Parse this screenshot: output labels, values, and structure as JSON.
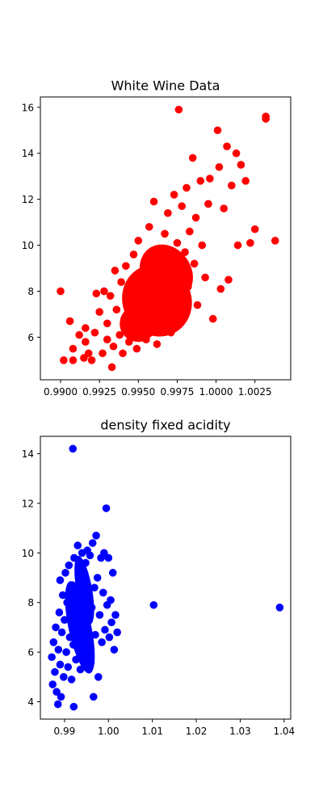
{
  "chart_data": [
    {
      "type": "scatter",
      "title": "White Wine Data",
      "xlabel": "",
      "ylabel": "",
      "xlim": [
        0.9887,
        1.0048
      ],
      "ylim": [
        4.15,
        16.45
      ],
      "xticks": [
        0.99,
        0.9925,
        0.995,
        0.9975,
        1.0,
        1.0025
      ],
      "xtick_labels": [
        "0.9900",
        "0.9925",
        "0.9950",
        "0.9975",
        "1.0000",
        "1.0025"
      ],
      "yticks": [
        6,
        8,
        10,
        12,
        14,
        16
      ],
      "ytick_labels": [
        "6",
        "8",
        "10",
        "12",
        "14",
        "16"
      ],
      "grid": false,
      "color": "#ff0000",
      "series": [
        {
          "values": [
            {
              "x": 0.99,
              "y": 8.0
            },
            {
              "x": 0.9902,
              "y": 5.0
            },
            {
              "x": 0.9906,
              "y": 6.7
            },
            {
              "x": 0.9908,
              "y": 5.0
            },
            {
              "x": 0.9908,
              "y": 5.5
            },
            {
              "x": 0.9912,
              "y": 6.1
            },
            {
              "x": 0.9915,
              "y": 5.1
            },
            {
              "x": 0.9916,
              "y": 5.8
            },
            {
              "x": 0.9916,
              "y": 6.4
            },
            {
              "x": 0.9918,
              "y": 5.3
            },
            {
              "x": 0.992,
              "y": 5.0
            },
            {
              "x": 0.9922,
              "y": 6.2
            },
            {
              "x": 0.9923,
              "y": 7.9
            },
            {
              "x": 0.9925,
              "y": 7.1
            },
            {
              "x": 0.9927,
              "y": 5.3
            },
            {
              "x": 0.9928,
              "y": 8.0
            },
            {
              "x": 0.993,
              "y": 6.6
            },
            {
              "x": 0.993,
              "y": 5.9
            },
            {
              "x": 0.9932,
              "y": 7.8
            },
            {
              "x": 0.9933,
              "y": 4.7
            },
            {
              "x": 0.9934,
              "y": 5.6
            },
            {
              "x": 0.9935,
              "y": 8.9
            },
            {
              "x": 0.9936,
              "y": 7.2
            },
            {
              "x": 0.9938,
              "y": 6.1
            },
            {
              "x": 0.9939,
              "y": 8.4
            },
            {
              "x": 0.994,
              "y": 5.3
            },
            {
              "x": 0.9941,
              "y": 6.8
            },
            {
              "x": 0.9942,
              "y": 9.1
            },
            {
              "x": 0.9943,
              "y": 7.4
            },
            {
              "x": 0.9944,
              "y": 5.8
            },
            {
              "x": 0.9945,
              "y": 8.1
            },
            {
              "x": 0.9946,
              "y": 6.3
            },
            {
              "x": 0.9947,
              "y": 9.6
            },
            {
              "x": 0.9948,
              "y": 7.0
            },
            {
              "x": 0.9949,
              "y": 5.5
            },
            {
              "x": 0.995,
              "y": 10.2
            },
            {
              "x": 0.9951,
              "y": 8.6
            },
            {
              "x": 0.9952,
              "y": 6.7
            },
            {
              "x": 0.9953,
              "y": 7.7
            },
            {
              "x": 0.9954,
              "y": 9.3
            },
            {
              "x": 0.9955,
              "y": 5.9
            },
            {
              "x": 0.9956,
              "y": 8.2
            },
            {
              "x": 0.9956,
              "y": 6.9
            },
            {
              "x": 0.9957,
              "y": 10.8
            },
            {
              "x": 0.9958,
              "y": 7.3
            },
            {
              "x": 0.9959,
              "y": 9.0
            },
            {
              "x": 0.996,
              "y": 6.4
            },
            {
              "x": 0.996,
              "y": 11.9
            },
            {
              "x": 0.9961,
              "y": 8.0
            },
            {
              "x": 0.9962,
              "y": 5.7
            },
            {
              "x": 0.9963,
              "y": 9.8
            },
            {
              "x": 0.9964,
              "y": 7.6
            },
            {
              "x": 0.9965,
              "y": 6.5
            },
            {
              "x": 0.9966,
              "y": 8.8
            },
            {
              "x": 0.9967,
              "y": 10.5
            },
            {
              "x": 0.9968,
              "y": 7.1
            },
            {
              "x": 0.9969,
              "y": 11.4
            },
            {
              "x": 0.997,
              "y": 8.4
            },
            {
              "x": 0.9971,
              "y": 6.2
            },
            {
              "x": 0.9972,
              "y": 9.4
            },
            {
              "x": 0.9973,
              "y": 12.2
            },
            {
              "x": 0.9974,
              "y": 7.8
            },
            {
              "x": 0.9975,
              "y": 10.1
            },
            {
              "x": 0.9976,
              "y": 15.9
            },
            {
              "x": 0.9977,
              "y": 8.9
            },
            {
              "x": 0.9978,
              "y": 11.7
            },
            {
              "x": 0.9979,
              "y": 6.9
            },
            {
              "x": 0.998,
              "y": 9.7
            },
            {
              "x": 0.9981,
              "y": 12.5
            },
            {
              "x": 0.9982,
              "y": 8.2
            },
            {
              "x": 0.9983,
              "y": 10.6
            },
            {
              "x": 0.9985,
              "y": 13.8
            },
            {
              "x": 0.9986,
              "y": 9.2
            },
            {
              "x": 0.9987,
              "y": 11.2
            },
            {
              "x": 0.9988,
              "y": 7.4
            },
            {
              "x": 0.999,
              "y": 12.8
            },
            {
              "x": 0.9991,
              "y": 10.0
            },
            {
              "x": 0.9993,
              "y": 8.6
            },
            {
              "x": 0.9995,
              "y": 11.8
            },
            {
              "x": 0.9996,
              "y": 12.9
            },
            {
              "x": 0.9998,
              "y": 6.8
            },
            {
              "x": 1.0001,
              "y": 15.0
            },
            {
              "x": 1.0002,
              "y": 13.4
            },
            {
              "x": 1.0003,
              "y": 8.1
            },
            {
              "x": 1.0005,
              "y": 11.6
            },
            {
              "x": 1.0007,
              "y": 14.3
            },
            {
              "x": 1.0008,
              "y": 8.5
            },
            {
              "x": 1.001,
              "y": 12.6
            },
            {
              "x": 1.0013,
              "y": 14.0
            },
            {
              "x": 1.0014,
              "y": 10.0
            },
            {
              "x": 1.0016,
              "y": 13.5
            },
            {
              "x": 1.0019,
              "y": 12.8
            },
            {
              "x": 1.0022,
              "y": 10.1
            },
            {
              "x": 1.0025,
              "y": 10.7
            },
            {
              "x": 1.0032,
              "y": 15.6
            },
            {
              "x": 1.0032,
              "y": 15.5
            },
            {
              "x": 1.0038,
              "y": 10.2
            }
          ]
        }
      ]
    },
    {
      "type": "scatter",
      "title": "density fixed acidity",
      "xlabel": "",
      "ylabel": "",
      "xlim": [
        0.9845,
        1.0415
      ],
      "ylim": [
        3.3,
        14.7
      ],
      "xticks": [
        0.99,
        1.0,
        1.01,
        1.02,
        1.03,
        1.04
      ],
      "xtick_labels": [
        "0.99",
        "1.00",
        "1.01",
        "1.02",
        "1.03",
        "1.04"
      ],
      "yticks": [
        4,
        6,
        8,
        10,
        12,
        14
      ],
      "ytick_labels": [
        "4",
        "6",
        "8",
        "10",
        "12",
        "14"
      ],
      "grid": false,
      "color": "#0000ff",
      "series": [
        {
          "values": [
            {
              "x": 0.9871,
              "y": 5.8
            },
            {
              "x": 0.9873,
              "y": 4.7
            },
            {
              "x": 0.9875,
              "y": 6.4
            },
            {
              "x": 0.9878,
              "y": 5.2
            },
            {
              "x": 0.988,
              "y": 7.0
            },
            {
              "x": 0.9882,
              "y": 4.4
            },
            {
              "x": 0.9885,
              "y": 3.9
            },
            {
              "x": 0.9886,
              "y": 6.1
            },
            {
              "x": 0.9888,
              "y": 7.6
            },
            {
              "x": 0.989,
              "y": 5.5
            },
            {
              "x": 0.989,
              "y": 8.9
            },
            {
              "x": 0.9892,
              "y": 4.2
            },
            {
              "x": 0.9894,
              "y": 6.8
            },
            {
              "x": 0.9896,
              "y": 8.3
            },
            {
              "x": 0.9898,
              "y": 5.0
            },
            {
              "x": 0.99,
              "y": 7.3
            },
            {
              "x": 0.9902,
              "y": 9.2
            },
            {
              "x": 0.9904,
              "y": 6.0
            },
            {
              "x": 0.9906,
              "y": 8.0
            },
            {
              "x": 0.9908,
              "y": 5.4
            },
            {
              "x": 0.991,
              "y": 9.5
            },
            {
              "x": 0.9912,
              "y": 6.6
            },
            {
              "x": 0.9914,
              "y": 7.9
            },
            {
              "x": 0.9916,
              "y": 4.9
            },
            {
              "x": 0.9918,
              "y": 8.7
            },
            {
              "x": 0.9919,
              "y": 14.2
            },
            {
              "x": 0.992,
              "y": 6.3
            },
            {
              "x": 0.9921,
              "y": 3.8
            },
            {
              "x": 0.9922,
              "y": 9.8
            },
            {
              "x": 0.9924,
              "y": 7.1
            },
            {
              "x": 0.9926,
              "y": 5.7
            },
            {
              "x": 0.9928,
              "y": 8.5
            },
            {
              "x": 0.993,
              "y": 10.3
            },
            {
              "x": 0.9932,
              "y": 6.9
            },
            {
              "x": 0.9934,
              "y": 9.1
            },
            {
              "x": 0.9936,
              "y": 5.3
            },
            {
              "x": 0.9938,
              "y": 7.7
            },
            {
              "x": 0.994,
              "y": 10.0
            },
            {
              "x": 0.9942,
              "y": 6.2
            },
            {
              "x": 0.9944,
              "y": 8.8
            },
            {
              "x": 0.9946,
              "y": 5.9
            },
            {
              "x": 0.9948,
              "y": 9.6
            },
            {
              "x": 0.995,
              "y": 7.4
            },
            {
              "x": 0.9952,
              "y": 10.1
            },
            {
              "x": 0.9954,
              "y": 6.5
            },
            {
              "x": 0.9956,
              "y": 8.2
            },
            {
              "x": 0.9958,
              "y": 9.9
            },
            {
              "x": 0.996,
              "y": 5.6
            },
            {
              "x": 0.9962,
              "y": 7.8
            },
            {
              "x": 0.9964,
              "y": 10.4
            },
            {
              "x": 0.9966,
              "y": 4.2
            },
            {
              "x": 0.9968,
              "y": 8.6
            },
            {
              "x": 0.997,
              "y": 6.7
            },
            {
              "x": 0.9972,
              "y": 10.7
            },
            {
              "x": 0.9975,
              "y": 9.0
            },
            {
              "x": 0.9977,
              "y": 5.0
            },
            {
              "x": 0.998,
              "y": 7.5
            },
            {
              "x": 0.9983,
              "y": 9.8
            },
            {
              "x": 0.9985,
              "y": 6.4
            },
            {
              "x": 0.9988,
              "y": 8.4
            },
            {
              "x": 0.999,
              "y": 10.0
            },
            {
              "x": 0.9992,
              "y": 6.9
            },
            {
              "x": 0.9995,
              "y": 11.8
            },
            {
              "x": 0.9997,
              "y": 7.9
            },
            {
              "x": 1.0,
              "y": 9.8
            },
            {
              "x": 1.0002,
              "y": 6.6
            },
            {
              "x": 1.0005,
              "y": 8.1
            },
            {
              "x": 1.0007,
              "y": 7.2
            },
            {
              "x": 1.001,
              "y": 9.2
            },
            {
              "x": 1.0013,
              "y": 6.1
            },
            {
              "x": 1.0016,
              "y": 7.5
            },
            {
              "x": 1.002,
              "y": 6.8
            },
            {
              "x": 1.0103,
              "y": 7.9
            },
            {
              "x": 1.039,
              "y": 7.8
            }
          ]
        }
      ]
    }
  ]
}
